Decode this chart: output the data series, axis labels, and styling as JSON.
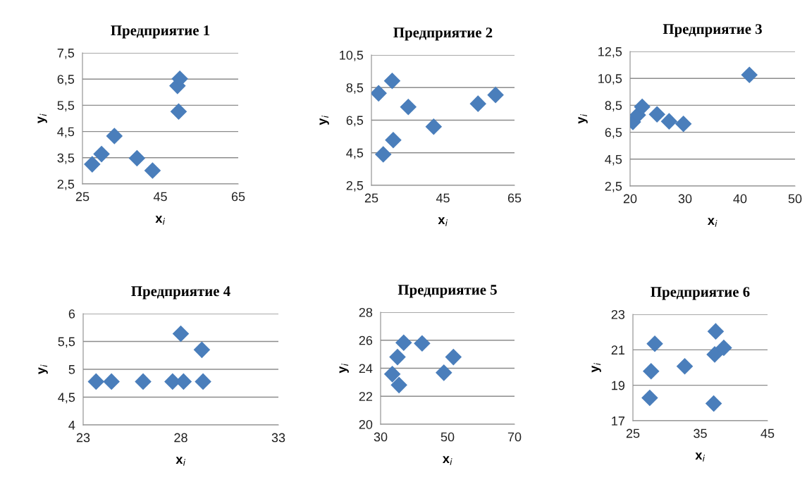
{
  "chart_data": [
    {
      "type": "scatter",
      "title": "Предприятие 1",
      "xlabel": "x$_{i}$",
      "ylabel": "y$_{i}$",
      "marker": "diamond",
      "grid": "y",
      "x": [
        27.5,
        29.9,
        33.2,
        39.0,
        43.0,
        49.4,
        50.0,
        49.7
      ],
      "series": [
        {
          "color": "#4a7ebb",
          "values": [
            3.25,
            3.64,
            4.33,
            3.48,
            3.01,
            6.24,
            6.51,
            5.26
          ]
        }
      ],
      "xlim": [
        25,
        65
      ],
      "xticks": [
        25,
        45,
        65
      ],
      "ylim": [
        2.5,
        7.5
      ],
      "yticks": [
        {
          "value": 2.5,
          "label": "2,5"
        },
        {
          "value": 3.5,
          "label": "3,5"
        },
        {
          "value": 4.5,
          "label": "4,5"
        },
        {
          "value": 5.5,
          "label": "5,5"
        },
        {
          "value": 6.5,
          "label": "6,5"
        },
        {
          "value": 7.5,
          "label": "7,5"
        }
      ]
    },
    {
      "type": "scatter",
      "title": "Предприятие 2",
      "xlabel": "x$_{i}$",
      "ylabel": "y$_{i}$",
      "marker": "diamond",
      "grid": "y",
      "x": [
        27.0,
        30.8,
        35.3,
        31.1,
        28.3,
        42.4,
        54.8,
        59.7
      ],
      "series": [
        {
          "color": "#4a7ebb",
          "values": [
            8.15,
            8.91,
            7.31,
            5.28,
            4.4,
            6.1,
            7.51,
            8.05
          ]
        }
      ],
      "xlim": [
        25,
        65
      ],
      "xticks": [
        25,
        45,
        65
      ],
      "ylim": [
        2.5,
        10.5
      ],
      "yticks": [
        {
          "value": 2.5,
          "label": "2,5"
        },
        {
          "value": 4.5,
          "label": "4,5"
        },
        {
          "value": 6.5,
          "label": "6,5"
        },
        {
          "value": 8.5,
          "label": "8,5"
        },
        {
          "value": 10.5,
          "label": "10,5"
        }
      ]
    },
    {
      "type": "scatter",
      "title": "Предприятие 3",
      "xlabel": "x$_{i}$",
      "ylabel": "y$_{i}$",
      "marker": "diamond",
      "grid": "y",
      "x": [
        20.5,
        21.4,
        22.2,
        24.9,
        27.1,
        29.7,
        41.7
      ],
      "series": [
        {
          "color": "#4a7ebb",
          "values": [
            7.26,
            7.78,
            8.39,
            7.83,
            7.31,
            7.12,
            10.76
          ]
        }
      ],
      "xlim": [
        20,
        50
      ],
      "xticks": [
        20,
        30,
        40,
        50
      ],
      "ylim": [
        2.5,
        12.5
      ],
      "yticks": [
        {
          "value": 2.5,
          "label": "2,5"
        },
        {
          "value": 4.5,
          "label": "4,5"
        },
        {
          "value": 6.5,
          "label": "6,5"
        },
        {
          "value": 8.5,
          "label": "8,5"
        },
        {
          "value": 10.5,
          "label": "10,5"
        },
        {
          "value": 12.5,
          "label": "12,5"
        }
      ]
    },
    {
      "type": "scatter",
      "title": "Предприятие 4",
      "xlabel": "x$_{i}$",
      "ylabel": "y$_{i}$",
      "marker": "diamond",
      "grid": "y",
      "x": [
        23.66,
        24.45,
        26.07,
        27.58,
        28.14,
        29.14,
        28.0,
        29.08
      ],
      "series": [
        {
          "color": "#4a7ebb",
          "values": [
            4.78,
            4.78,
            4.78,
            4.78,
            4.78,
            4.78,
            5.64,
            5.35
          ]
        }
      ],
      "xlim": [
        23,
        33
      ],
      "xticks": [
        23,
        28,
        33
      ],
      "ylim": [
        4,
        6
      ],
      "yticks": [
        4,
        {
          "value": 4.5,
          "label": "4,5"
        },
        5,
        {
          "value": 5.5,
          "label": "5,5"
        },
        6
      ]
    },
    {
      "type": "scatter",
      "title": "Предприятие 5",
      "xlabel": "x$_{i}$",
      "ylabel": "y$_{i}$",
      "marker": "diamond",
      "grid": "y",
      "x": [
        36.9,
        42.4,
        35.05,
        33.5,
        35.5,
        48.9,
        51.75
      ],
      "series": [
        {
          "color": "#4a7ebb",
          "values": [
            25.82,
            25.77,
            24.8,
            23.58,
            22.8,
            23.68,
            24.8
          ]
        }
      ],
      "xlim": [
        30,
        70
      ],
      "xticks": [
        30,
        50,
        70
      ],
      "ylim": [
        20,
        28
      ],
      "yticks": [
        20,
        22,
        24,
        26,
        28
      ]
    },
    {
      "type": "scatter",
      "title": "Предприятие 6",
      "xlabel": "x$_{i}$",
      "ylabel": "y$_{i}$",
      "marker": "diamond",
      "grid": "y",
      "x": [
        28.25,
        27.7,
        27.5,
        32.7,
        37.3,
        37.15,
        38.5,
        37.0
      ],
      "series": [
        {
          "color": "#4a7ebb",
          "values": [
            21.34,
            19.79,
            18.29,
            20.07,
            22.04,
            20.74,
            21.11,
            17.97
          ]
        }
      ],
      "xlim": [
        25,
        45
      ],
      "xticks": [
        25,
        35,
        45
      ],
      "ylim": [
        17,
        23
      ],
      "yticks": [
        17,
        19,
        21,
        23
      ]
    }
  ]
}
